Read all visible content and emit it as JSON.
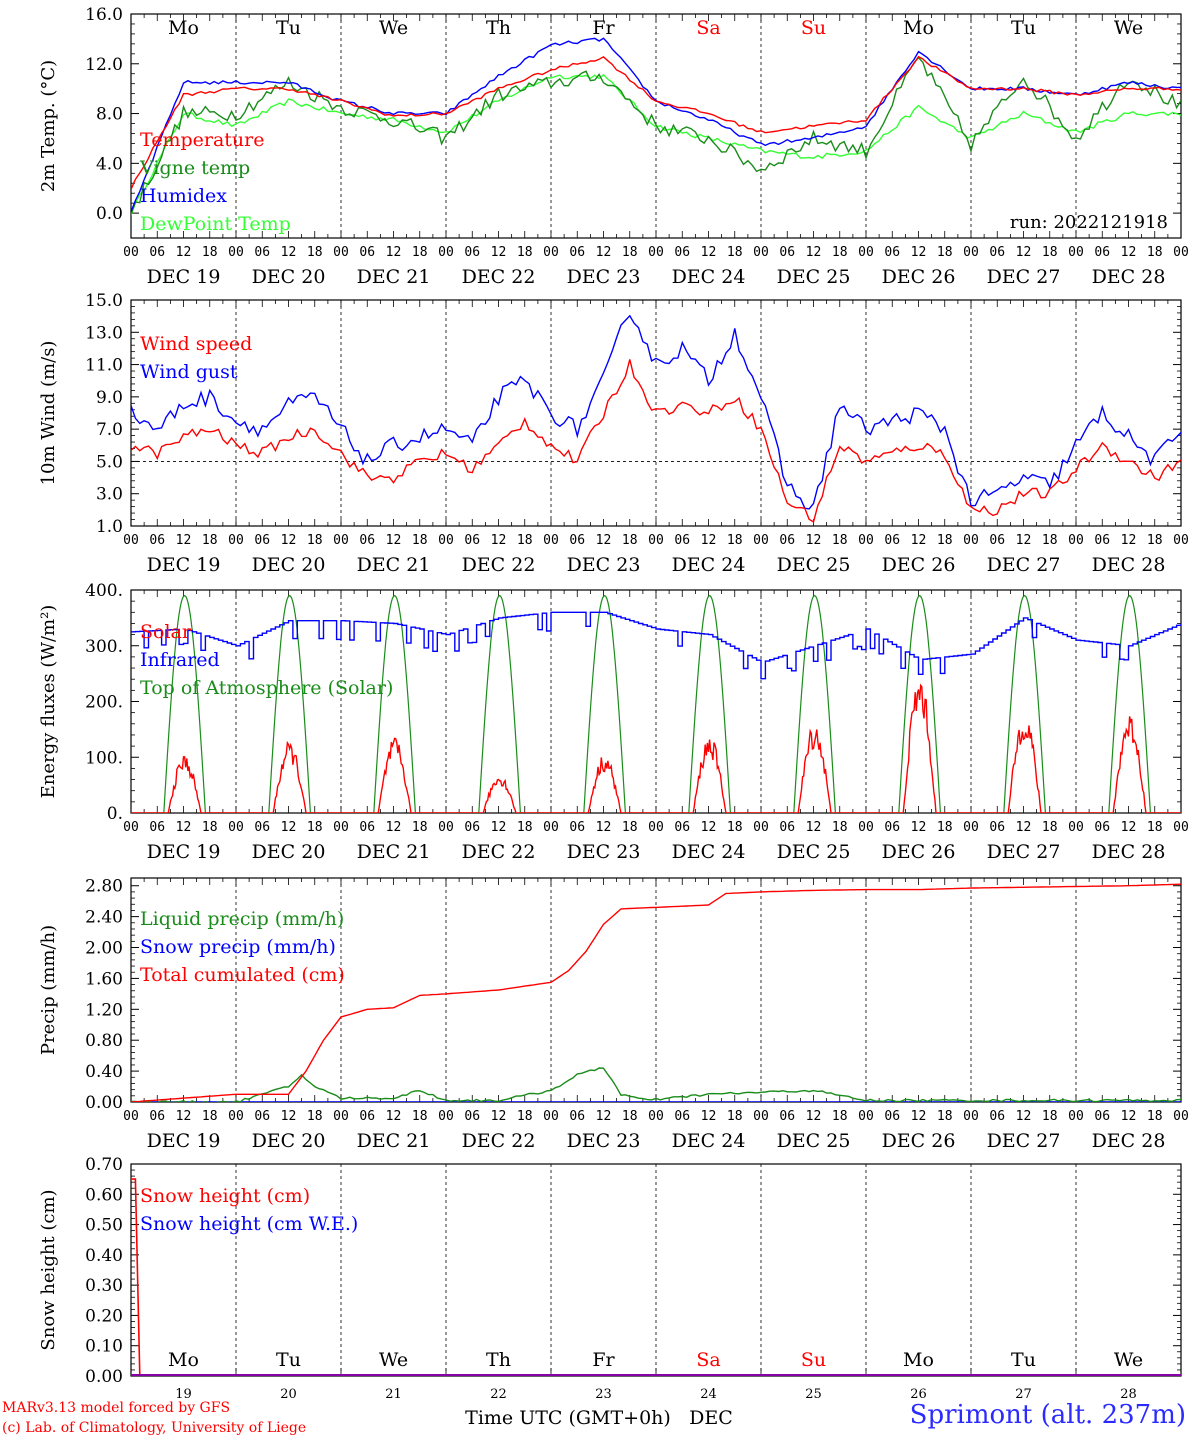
{
  "station": "Sprimont (alt. 237m)",
  "footer_model": "MARv3.13 model forced by GFS",
  "footer_credit": "(c) Lab. of Climatology, University of Liege",
  "xaxis_label": "Time UTC (GMT+0h)",
  "xaxis_month": "DEC",
  "run": "run: 2022121918",
  "days": [
    {
      "dow": "Mo",
      "date": "DEC 19",
      "num": "19",
      "weekend": false
    },
    {
      "dow": "Tu",
      "date": "DEC 20",
      "num": "20",
      "weekend": false
    },
    {
      "dow": "We",
      "date": "DEC 21",
      "num": "21",
      "weekend": false
    },
    {
      "dow": "Th",
      "date": "DEC 22",
      "num": "22",
      "weekend": false
    },
    {
      "dow": "Fr",
      "date": "DEC 23",
      "num": "23",
      "weekend": false
    },
    {
      "dow": "Sa",
      "date": "DEC 24",
      "num": "24",
      "weekend": true
    },
    {
      "dow": "Su",
      "date": "DEC 25",
      "num": "25",
      "weekend": true
    },
    {
      "dow": "Mo",
      "date": "DEC 26",
      "num": "26",
      "weekend": false
    },
    {
      "dow": "Tu",
      "date": "DEC 27",
      "num": "27",
      "weekend": false
    },
    {
      "dow": "We",
      "date": "DEC 28",
      "num": "28",
      "weekend": false
    }
  ],
  "hour_ticks": [
    "00",
    "06",
    "12",
    "18"
  ],
  "colors": {
    "red": "#ff0000",
    "blue": "#0000ff",
    "green": "#1a8c1a",
    "lightgreen": "#33ff33",
    "weekend": "#ff0000"
  },
  "chart_data": [
    {
      "type": "line",
      "ylabel": "2m Temp. (°C)",
      "ylim": [
        -2,
        16
      ],
      "yticks": [
        0,
        4,
        8,
        12,
        16
      ],
      "ytick_labels": [
        "0.0",
        "4.0",
        "8.0",
        "12.0",
        "16.0"
      ],
      "x_unit": "hours since DEC 19 00 UTC",
      "series": [
        {
          "name": "Temperature",
          "color": "#ff0000",
          "x": [
            0,
            12,
            24,
            36,
            48,
            60,
            72,
            84,
            96,
            108,
            120,
            132,
            144,
            156,
            168,
            180,
            192,
            204,
            216,
            228,
            240
          ],
          "values": [
            2,
            9.5,
            10,
            10,
            9,
            7.8,
            8,
            10,
            11.5,
            12.5,
            9,
            8,
            6.5,
            7,
            7.5,
            12.5,
            10,
            10,
            9.5,
            10,
            10
          ]
        },
        {
          "name": "Vigne temp",
          "color": "#1a8c1a",
          "x": [
            0,
            12,
            24,
            36,
            48,
            60,
            72,
            84,
            96,
            108,
            120,
            132,
            144,
            156,
            168,
            180,
            192,
            204,
            216,
            228,
            240
          ],
          "values": [
            0,
            8,
            8,
            10.5,
            8.5,
            7.5,
            6,
            9.5,
            10.5,
            11,
            7,
            6,
            3.5,
            6,
            5,
            12.5,
            5.5,
            11,
            6,
            11,
            8.5
          ]
        },
        {
          "name": "Humidex",
          "color": "#0000ff",
          "x": [
            0,
            12,
            24,
            36,
            48,
            60,
            72,
            84,
            96,
            108,
            120,
            132,
            144,
            156,
            168,
            180,
            192,
            204,
            216,
            228,
            240
          ],
          "values": [
            0,
            10.5,
            10.5,
            10.5,
            9,
            8,
            8,
            11,
            13.5,
            14,
            9,
            7.5,
            5.5,
            6,
            7,
            13,
            10,
            10,
            9.5,
            10.5,
            10
          ]
        },
        {
          "name": "DewPoint Temp",
          "color": "#33ff33",
          "x": [
            0,
            12,
            24,
            36,
            48,
            60,
            72,
            84,
            96,
            108,
            120,
            132,
            144,
            156,
            168,
            180,
            192,
            204,
            216,
            228,
            240
          ],
          "values": [
            0,
            8,
            7,
            9,
            8,
            7.5,
            6.5,
            9,
            11,
            11,
            7,
            6,
            5,
            4.5,
            5,
            8.5,
            6,
            8,
            6.5,
            8,
            8
          ]
        }
      ]
    },
    {
      "type": "line",
      "ylabel": "10m Wind (m/s)",
      "ylim": [
        1,
        15
      ],
      "yticks": [
        1,
        3,
        5,
        7,
        9,
        11,
        13,
        15
      ],
      "ytick_labels": [
        "1.0",
        "3.0",
        "5.0",
        "7.0",
        "9.0",
        "11.0",
        "13.0",
        "15.0"
      ],
      "ref_line": 5,
      "series": [
        {
          "name": "Wind speed",
          "color": "#ff0000",
          "x": [
            0,
            6,
            12,
            18,
            24,
            30,
            36,
            42,
            48,
            54,
            60,
            66,
            72,
            78,
            84,
            90,
            96,
            102,
            108,
            114,
            120,
            126,
            132,
            138,
            144,
            150,
            156,
            162,
            168,
            174,
            180,
            186,
            192,
            198,
            204,
            210,
            216,
            222,
            228,
            234,
            240
          ],
          "values": [
            6,
            5.5,
            6.5,
            7,
            6,
            5.5,
            6.5,
            7,
            5.5,
            4,
            4,
            5,
            5.5,
            4.5,
            6,
            7.5,
            6,
            5,
            8,
            11,
            8,
            8.5,
            8,
            9,
            7,
            2.5,
            1.5,
            6,
            5,
            5.5,
            6,
            5.5,
            2,
            2,
            3,
            3,
            4.5,
            6,
            5,
            4,
            5
          ]
        },
        {
          "name": "Wind gust",
          "color": "#0000ff",
          "x": [
            0,
            6,
            12,
            18,
            24,
            30,
            36,
            42,
            48,
            54,
            60,
            66,
            72,
            78,
            84,
            90,
            96,
            102,
            108,
            114,
            120,
            126,
            132,
            138,
            144,
            150,
            156,
            162,
            168,
            174,
            180,
            186,
            192,
            198,
            204,
            210,
            216,
            222,
            228,
            234,
            240
          ],
          "values": [
            8,
            7,
            8.5,
            9,
            7.5,
            7,
            8.5,
            9,
            7,
            5,
            6,
            6.5,
            7,
            6,
            9,
            10,
            8,
            7,
            10,
            14.5,
            11,
            12,
            10,
            13,
            9,
            3.5,
            2,
            8.5,
            7,
            7.5,
            8,
            7,
            2.5,
            3,
            4,
            3.5,
            6,
            8,
            6.5,
            5,
            7
          ]
        }
      ]
    },
    {
      "type": "line",
      "ylabel": "Energy fluxes (W/m²)",
      "ylim": [
        0,
        400
      ],
      "yticks": [
        0,
        100,
        200,
        300,
        400
      ],
      "ytick_labels": [
        "0.",
        "100.",
        "200.",
        "300.",
        "400."
      ],
      "solar_peaks": [
        90,
        110,
        115,
        60,
        90,
        120,
        140,
        215,
        160,
        155
      ],
      "series": [
        {
          "name": "Solar",
          "color": "#ff0000"
        },
        {
          "name": "Infrared",
          "color": "#0000ff",
          "x": [
            0,
            12,
            24,
            36,
            48,
            60,
            72,
            84,
            96,
            108,
            120,
            132,
            144,
            156,
            168,
            180,
            192,
            204,
            216,
            228,
            240
          ],
          "values": [
            325,
            330,
            300,
            345,
            345,
            340,
            320,
            350,
            360,
            360,
            330,
            320,
            270,
            300,
            330,
            275,
            285,
            350,
            310,
            300,
            340
          ]
        },
        {
          "name": "Top of Atmosphere (Solar)",
          "color": "#1a8c1a",
          "peak": 390
        }
      ]
    },
    {
      "type": "line",
      "ylabel": "Precip (mm/h)",
      "ylim": [
        0,
        2.9
      ],
      "yticks": [
        0,
        0.4,
        0.8,
        1.2,
        1.6,
        2.0,
        2.4,
        2.8
      ],
      "ytick_labels": [
        "0.00",
        "0.40",
        "0.80",
        "1.20",
        "1.60",
        "2.00",
        "2.40",
        "2.80"
      ],
      "series": [
        {
          "name": "Liquid precip (mm/h)",
          "color": "#1a8c1a",
          "x": [
            0,
            12,
            24,
            36,
            39,
            42,
            48,
            60,
            66,
            72,
            84,
            96,
            102,
            108,
            112,
            118,
            132,
            156,
            168,
            240
          ],
          "values": [
            0,
            0,
            0,
            0.2,
            0.35,
            0.2,
            0.05,
            0.05,
            0.15,
            0.02,
            0.02,
            0.15,
            0.35,
            0.45,
            0.1,
            0.02,
            0.1,
            0.15,
            0.02,
            0.02
          ]
        },
        {
          "name": "Snow precip (mm/h)",
          "color": "#0000ff",
          "x": [
            0,
            240
          ],
          "values": [
            0,
            0
          ]
        },
        {
          "name": "Total cumulated (cm)",
          "color": "#ff0000",
          "x": [
            0,
            12,
            24,
            36,
            40,
            44,
            48,
            54,
            60,
            66,
            72,
            84,
            96,
            100,
            104,
            108,
            112,
            120,
            132,
            136,
            144,
            156,
            168,
            180,
            192,
            204,
            216,
            228,
            240
          ],
          "values": [
            0,
            0.05,
            0.1,
            0.1,
            0.4,
            0.8,
            1.1,
            1.2,
            1.22,
            1.38,
            1.4,
            1.45,
            1.55,
            1.7,
            1.95,
            2.3,
            2.5,
            2.52,
            2.55,
            2.7,
            2.72,
            2.74,
            2.75,
            2.75,
            2.77,
            2.78,
            2.79,
            2.8,
            2.82
          ]
        }
      ]
    },
    {
      "type": "line",
      "ylabel": "Snow height (cm)",
      "ylim": [
        0,
        0.7
      ],
      "yticks": [
        0,
        0.1,
        0.2,
        0.3,
        0.4,
        0.5,
        0.6,
        0.7
      ],
      "ytick_labels": [
        "0.00",
        "0.10",
        "0.20",
        "0.30",
        "0.40",
        "0.50",
        "0.60",
        "0.70"
      ],
      "series": [
        {
          "name": "Snow height (cm)",
          "color": "#ff0000",
          "x": [
            0,
            1,
            2,
            240
          ],
          "values": [
            0.65,
            0.65,
            0,
            0
          ]
        },
        {
          "name": "Snow height (cm W.E.)",
          "color": "#0000ff",
          "x": [
            0,
            240
          ],
          "values": [
            0,
            0
          ]
        }
      ]
    }
  ]
}
